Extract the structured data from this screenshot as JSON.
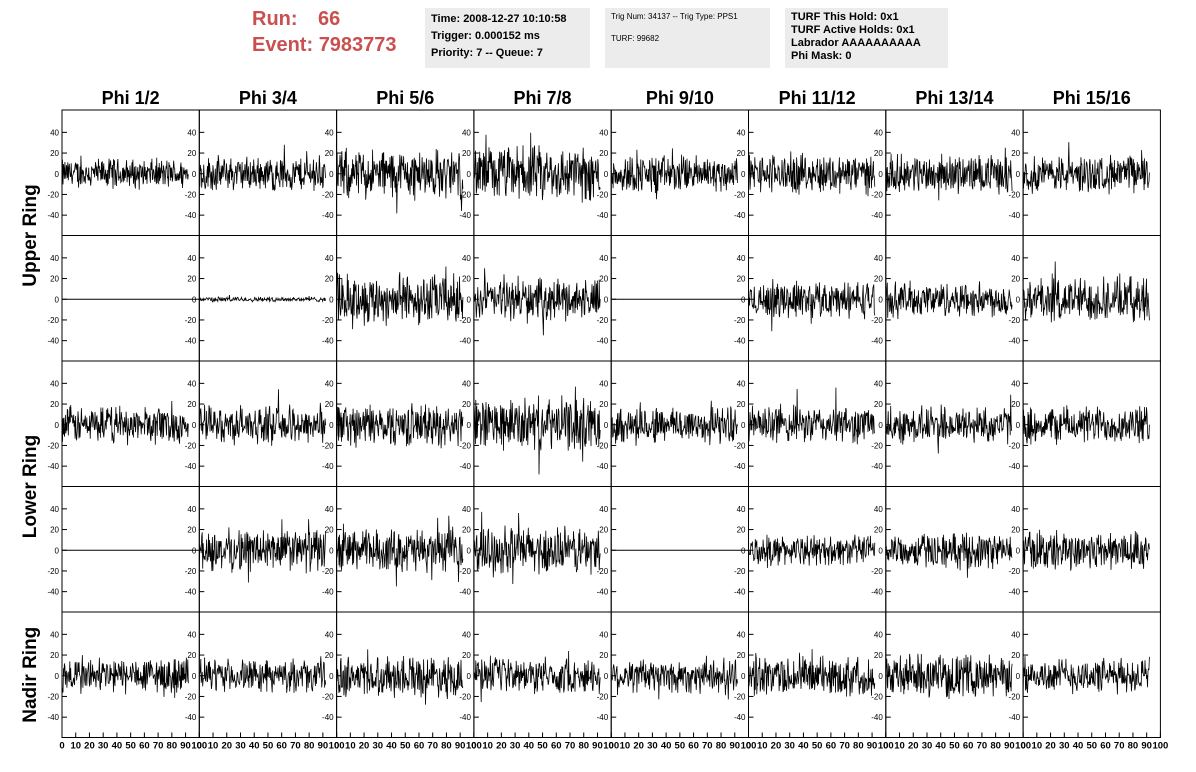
{
  "header": {
    "run_label": "Run:",
    "run_value": "66",
    "event_label": "Event:",
    "event_value": "7983773",
    "time": "Time: 2008-12-27 10:10:58",
    "trigger": "Trigger: 0.000152 ms",
    "priority": "Priority: 7 -- Queue: 7",
    "trig_info": "Trig Num: 34137 -- Trig Type: PPS1",
    "turf": "TURF: 99682",
    "turf_hold": "TURF This Hold: 0x1",
    "turf_active": "TURF Active Holds: 0x1",
    "labrador": "Labrador AAAAAAAAAA",
    "phi_mask": "Phi Mask: 0",
    "run_color": "#c9504f"
  },
  "chart_data": {
    "type": "line",
    "columns": [
      "Phi 1/2",
      "Phi 3/4",
      "Phi 5/6",
      "Phi 7/8",
      "Phi 9/10",
      "Phi 11/12",
      "Phi 13/14",
      "Phi 15/16"
    ],
    "rows": [
      "Upper Ring",
      "Lower Ring",
      "Nadir Ring"
    ],
    "xlim": [
      0,
      100
    ],
    "ylim": [
      -50,
      50
    ],
    "x_ticks": [
      "0",
      "10",
      "20",
      "30",
      "40",
      "50",
      "60",
      "70",
      "80",
      "90",
      "100"
    ],
    "y_ticks": [
      "40",
      "20",
      "0",
      "-20",
      "-40"
    ],
    "line_color": "#000000",
    "waveforms": [
      {
        "channel": 0,
        "amplitude": [
          {
            "col": 0,
            "amp": 12
          },
          {
            "col": 1,
            "amp": 14
          },
          {
            "col": 2,
            "amp": 20
          },
          {
            "col": 3,
            "amp": 22
          },
          {
            "col": 4,
            "amp": 15
          },
          {
            "col": 5,
            "amp": 16
          },
          {
            "col": 6,
            "amp": 15
          },
          {
            "col": 7,
            "amp": 15
          }
        ]
      },
      {
        "channel": 1,
        "amplitude": [
          {
            "col": 0,
            "amp": 0
          },
          {
            "col": 1,
            "amp": 2
          },
          {
            "col": 2,
            "amp": 20
          },
          {
            "col": 3,
            "amp": 16
          },
          {
            "col": 4,
            "amp": 0
          },
          {
            "col": 5,
            "amp": 15
          },
          {
            "col": 6,
            "amp": 14
          },
          {
            "col": 7,
            "amp": 18
          }
        ]
      },
      {
        "channel": 2,
        "amplitude": [
          {
            "col": 0,
            "amp": 15
          },
          {
            "col": 1,
            "amp": 15
          },
          {
            "col": 2,
            "amp": 17
          },
          {
            "col": 3,
            "amp": 21
          },
          {
            "col": 4,
            "amp": 15
          },
          {
            "col": 5,
            "amp": 15
          },
          {
            "col": 6,
            "amp": 15
          },
          {
            "col": 7,
            "amp": 15
          }
        ]
      },
      {
        "channel": 3,
        "amplitude": [
          {
            "col": 0,
            "amp": 0
          },
          {
            "col": 1,
            "amp": 17
          },
          {
            "col": 2,
            "amp": 17
          },
          {
            "col": 3,
            "amp": 19
          },
          {
            "col": 4,
            "amp": 0
          },
          {
            "col": 5,
            "amp": 12
          },
          {
            "col": 6,
            "amp": 14
          },
          {
            "col": 7,
            "amp": 16
          }
        ]
      },
      {
        "channel": 4,
        "amplitude": [
          {
            "col": 0,
            "amp": 15
          },
          {
            "col": 1,
            "amp": 13
          },
          {
            "col": 2,
            "amp": 16
          },
          {
            "col": 3,
            "amp": 14
          },
          {
            "col": 4,
            "amp": 14
          },
          {
            "col": 5,
            "amp": 16
          },
          {
            "col": 6,
            "amp": 17
          },
          {
            "col": 7,
            "amp": 14
          }
        ]
      }
    ]
  }
}
